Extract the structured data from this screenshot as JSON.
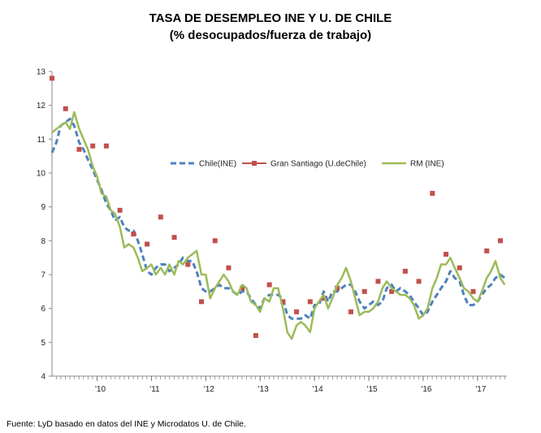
{
  "chart_data": {
    "type": "line",
    "title": "TASA  DE  DESEMPLEO INE Y U. DE CHILE",
    "subtitle": "(% desocupados/fuerza de trabajo)",
    "xlabel": "",
    "ylabel": "",
    "ylim": [
      4,
      13
    ],
    "yticks": [
      "4",
      "5",
      "6",
      "7",
      "8",
      "9",
      "10",
      "11",
      "12",
      "13"
    ],
    "xlim": [
      2009.17,
      2017.54
    ],
    "xticks": [
      {
        "label": "'10",
        "x": 2010.0
      },
      {
        "label": "'11",
        "x": 2011.0
      },
      {
        "label": "'12",
        "x": 2012.0
      },
      {
        "label": "'13",
        "x": 2013.0
      },
      {
        "label": "'14",
        "x": 2014.0
      },
      {
        "label": "'15",
        "x": 2015.0
      },
      {
        "label": "'16",
        "x": 2016.0
      },
      {
        "label": "'17",
        "x": 2017.0
      }
    ],
    "legend_position": "middle-right",
    "series": [
      {
        "name": "Chile(INE)",
        "style": "dashed",
        "color": "#4f81bd",
        "points": [
          [
            2009.17,
            10.6
          ],
          [
            2009.25,
            10.9
          ],
          [
            2009.33,
            11.4
          ],
          [
            2009.42,
            11.5
          ],
          [
            2009.5,
            11.6
          ],
          [
            2009.58,
            11.4
          ],
          [
            2009.67,
            10.9
          ],
          [
            2009.75,
            10.7
          ],
          [
            2009.83,
            10.4
          ],
          [
            2009.92,
            10.1
          ],
          [
            2010.0,
            9.8
          ],
          [
            2010.08,
            9.5
          ],
          [
            2010.17,
            9.1
          ],
          [
            2010.25,
            8.9
          ],
          [
            2010.33,
            8.6
          ],
          [
            2010.42,
            8.7
          ],
          [
            2010.5,
            8.4
          ],
          [
            2010.58,
            8.3
          ],
          [
            2010.67,
            8.3
          ],
          [
            2010.75,
            8.0
          ],
          [
            2010.83,
            7.6
          ],
          [
            2010.92,
            7.1
          ],
          [
            2011.0,
            7.0
          ],
          [
            2011.08,
            7.2
          ],
          [
            2011.17,
            7.3
          ],
          [
            2011.25,
            7.3
          ],
          [
            2011.33,
            7.1
          ],
          [
            2011.42,
            7.2
          ],
          [
            2011.5,
            7.3
          ],
          [
            2011.58,
            7.5
          ],
          [
            2011.67,
            7.4
          ],
          [
            2011.75,
            7.4
          ],
          [
            2011.83,
            7.1
          ],
          [
            2011.92,
            6.6
          ],
          [
            2012.0,
            6.5
          ],
          [
            2012.08,
            6.5
          ],
          [
            2012.17,
            6.6
          ],
          [
            2012.25,
            6.7
          ],
          [
            2012.33,
            6.6
          ],
          [
            2012.42,
            6.6
          ],
          [
            2012.5,
            6.5
          ],
          [
            2012.58,
            6.4
          ],
          [
            2012.67,
            6.5
          ],
          [
            2012.75,
            6.5
          ],
          [
            2012.83,
            6.3
          ],
          [
            2012.92,
            6.1
          ],
          [
            2013.0,
            6.0
          ],
          [
            2013.08,
            6.3
          ],
          [
            2013.17,
            6.4
          ],
          [
            2013.25,
            6.4
          ],
          [
            2013.33,
            6.4
          ],
          [
            2013.42,
            6.3
          ],
          [
            2013.5,
            5.8
          ],
          [
            2013.58,
            5.7
          ],
          [
            2013.67,
            5.7
          ],
          [
            2013.75,
            5.7
          ],
          [
            2013.83,
            5.8
          ],
          [
            2013.92,
            5.7
          ],
          [
            2014.0,
            6.1
          ],
          [
            2014.08,
            6.1
          ],
          [
            2014.17,
            6.5
          ],
          [
            2014.25,
            6.2
          ],
          [
            2014.33,
            6.5
          ],
          [
            2014.42,
            6.5
          ],
          [
            2014.5,
            6.6
          ],
          [
            2014.58,
            6.7
          ],
          [
            2014.67,
            6.7
          ],
          [
            2014.75,
            6.5
          ],
          [
            2014.83,
            6.2
          ],
          [
            2014.92,
            6.0
          ],
          [
            2015.0,
            6.1
          ],
          [
            2015.08,
            6.2
          ],
          [
            2015.17,
            6.1
          ],
          [
            2015.25,
            6.2
          ],
          [
            2015.33,
            6.6
          ],
          [
            2015.42,
            6.7
          ],
          [
            2015.5,
            6.5
          ],
          [
            2015.58,
            6.6
          ],
          [
            2015.67,
            6.5
          ],
          [
            2015.75,
            6.4
          ],
          [
            2015.83,
            6.2
          ],
          [
            2015.92,
            6.0
          ],
          [
            2016.0,
            5.8
          ],
          [
            2016.08,
            5.9
          ],
          [
            2016.17,
            6.2
          ],
          [
            2016.25,
            6.4
          ],
          [
            2016.33,
            6.6
          ],
          [
            2016.42,
            6.8
          ],
          [
            2016.5,
            7.1
          ],
          [
            2016.58,
            6.9
          ],
          [
            2016.67,
            6.8
          ],
          [
            2016.75,
            6.4
          ],
          [
            2016.83,
            6.1
          ],
          [
            2016.92,
            6.1
          ],
          [
            2017.0,
            6.2
          ],
          [
            2017.08,
            6.4
          ],
          [
            2017.17,
            6.6
          ],
          [
            2017.25,
            6.7
          ],
          [
            2017.33,
            6.9
          ],
          [
            2017.42,
            7.0
          ],
          [
            2017.5,
            6.9
          ]
        ]
      },
      {
        "name": "Gran  Santiago (U.deChile)",
        "style": "markers",
        "color": "#c0504d",
        "points": [
          [
            2009.17,
            12.8
          ],
          [
            2009.42,
            11.9
          ],
          [
            2009.67,
            10.7
          ],
          [
            2009.92,
            10.8
          ],
          [
            2010.17,
            10.8
          ],
          [
            2010.42,
            8.9
          ],
          [
            2010.67,
            8.2
          ],
          [
            2010.92,
            7.9
          ],
          [
            2011.17,
            8.7
          ],
          [
            2011.42,
            8.1
          ],
          [
            2011.67,
            7.3
          ],
          [
            2011.92,
            6.2
          ],
          [
            2012.17,
            8.0
          ],
          [
            2012.42,
            7.2
          ],
          [
            2012.67,
            6.6
          ],
          [
            2012.92,
            5.2
          ],
          [
            2013.17,
            6.7
          ],
          [
            2013.42,
            6.2
          ],
          [
            2013.67,
            5.9
          ],
          [
            2013.92,
            6.2
          ],
          [
            2014.17,
            6.3
          ],
          [
            2014.42,
            6.6
          ],
          [
            2014.67,
            5.9
          ],
          [
            2014.92,
            6.5
          ],
          [
            2015.17,
            6.8
          ],
          [
            2015.42,
            6.5
          ],
          [
            2015.67,
            7.1
          ],
          [
            2015.92,
            6.8
          ],
          [
            2016.17,
            9.4
          ],
          [
            2016.42,
            7.6
          ],
          [
            2016.67,
            7.2
          ],
          [
            2016.92,
            6.5
          ],
          [
            2017.17,
            7.7
          ],
          [
            2017.42,
            8.0
          ]
        ]
      },
      {
        "name": "RM (INE)",
        "style": "solid",
        "color": "#9bbb59",
        "points": [
          [
            2009.17,
            11.2
          ],
          [
            2009.25,
            11.3
          ],
          [
            2009.33,
            11.4
          ],
          [
            2009.42,
            11.5
          ],
          [
            2009.5,
            11.3
          ],
          [
            2009.58,
            11.8
          ],
          [
            2009.67,
            11.3
          ],
          [
            2009.75,
            11.0
          ],
          [
            2009.83,
            10.7
          ],
          [
            2009.92,
            10.2
          ],
          [
            2010.0,
            9.9
          ],
          [
            2010.08,
            9.4
          ],
          [
            2010.17,
            9.3
          ],
          [
            2010.25,
            8.9
          ],
          [
            2010.33,
            8.8
          ],
          [
            2010.42,
            8.4
          ],
          [
            2010.5,
            7.8
          ],
          [
            2010.58,
            7.9
          ],
          [
            2010.67,
            7.8
          ],
          [
            2010.75,
            7.5
          ],
          [
            2010.83,
            7.1
          ],
          [
            2010.92,
            7.2
          ],
          [
            2011.0,
            7.3
          ],
          [
            2011.08,
            7.0
          ],
          [
            2011.17,
            7.2
          ],
          [
            2011.25,
            7.0
          ],
          [
            2011.33,
            7.3
          ],
          [
            2011.42,
            7.0
          ],
          [
            2011.5,
            7.4
          ],
          [
            2011.58,
            7.3
          ],
          [
            2011.67,
            7.5
          ],
          [
            2011.75,
            7.6
          ],
          [
            2011.83,
            7.7
          ],
          [
            2011.92,
            7.0
          ],
          [
            2012.0,
            7.0
          ],
          [
            2012.08,
            6.3
          ],
          [
            2012.17,
            6.6
          ],
          [
            2012.25,
            6.8
          ],
          [
            2012.33,
            7.0
          ],
          [
            2012.42,
            6.8
          ],
          [
            2012.5,
            6.5
          ],
          [
            2012.58,
            6.4
          ],
          [
            2012.67,
            6.7
          ],
          [
            2012.75,
            6.6
          ],
          [
            2012.83,
            6.2
          ],
          [
            2012.92,
            6.1
          ],
          [
            2013.0,
            5.9
          ],
          [
            2013.08,
            6.3
          ],
          [
            2013.17,
            6.2
          ],
          [
            2013.25,
            6.6
          ],
          [
            2013.33,
            6.6
          ],
          [
            2013.42,
            6.0
          ],
          [
            2013.5,
            5.3
          ],
          [
            2013.58,
            5.1
          ],
          [
            2013.67,
            5.5
          ],
          [
            2013.75,
            5.6
          ],
          [
            2013.83,
            5.5
          ],
          [
            2013.92,
            5.3
          ],
          [
            2014.0,
            6.0
          ],
          [
            2014.08,
            6.2
          ],
          [
            2014.17,
            6.4
          ],
          [
            2014.25,
            6.0
          ],
          [
            2014.33,
            6.3
          ],
          [
            2014.42,
            6.7
          ],
          [
            2014.5,
            6.9
          ],
          [
            2014.58,
            7.2
          ],
          [
            2014.67,
            6.8
          ],
          [
            2014.75,
            6.3
          ],
          [
            2014.83,
            5.8
          ],
          [
            2014.92,
            5.9
          ],
          [
            2015.0,
            5.9
          ],
          [
            2015.08,
            6.0
          ],
          [
            2015.17,
            6.2
          ],
          [
            2015.25,
            6.6
          ],
          [
            2015.33,
            6.8
          ],
          [
            2015.42,
            6.6
          ],
          [
            2015.5,
            6.5
          ],
          [
            2015.58,
            6.4
          ],
          [
            2015.67,
            6.4
          ],
          [
            2015.75,
            6.3
          ],
          [
            2015.83,
            6.1
          ],
          [
            2015.92,
            5.7
          ],
          [
            2016.0,
            5.8
          ],
          [
            2016.08,
            6.0
          ],
          [
            2016.17,
            6.6
          ],
          [
            2016.25,
            6.9
          ],
          [
            2016.33,
            7.3
          ],
          [
            2016.42,
            7.3
          ],
          [
            2016.5,
            7.5
          ],
          [
            2016.58,
            7.2
          ],
          [
            2016.67,
            6.9
          ],
          [
            2016.75,
            6.6
          ],
          [
            2016.83,
            6.5
          ],
          [
            2016.92,
            6.3
          ],
          [
            2017.0,
            6.2
          ],
          [
            2017.08,
            6.5
          ],
          [
            2017.17,
            6.9
          ],
          [
            2017.25,
            7.1
          ],
          [
            2017.33,
            7.4
          ],
          [
            2017.42,
            6.9
          ],
          [
            2017.5,
            6.7
          ]
        ]
      }
    ]
  },
  "footer": {
    "source": "Fuente: LyD basado en datos del INE y Microdatos U. de Chile."
  }
}
